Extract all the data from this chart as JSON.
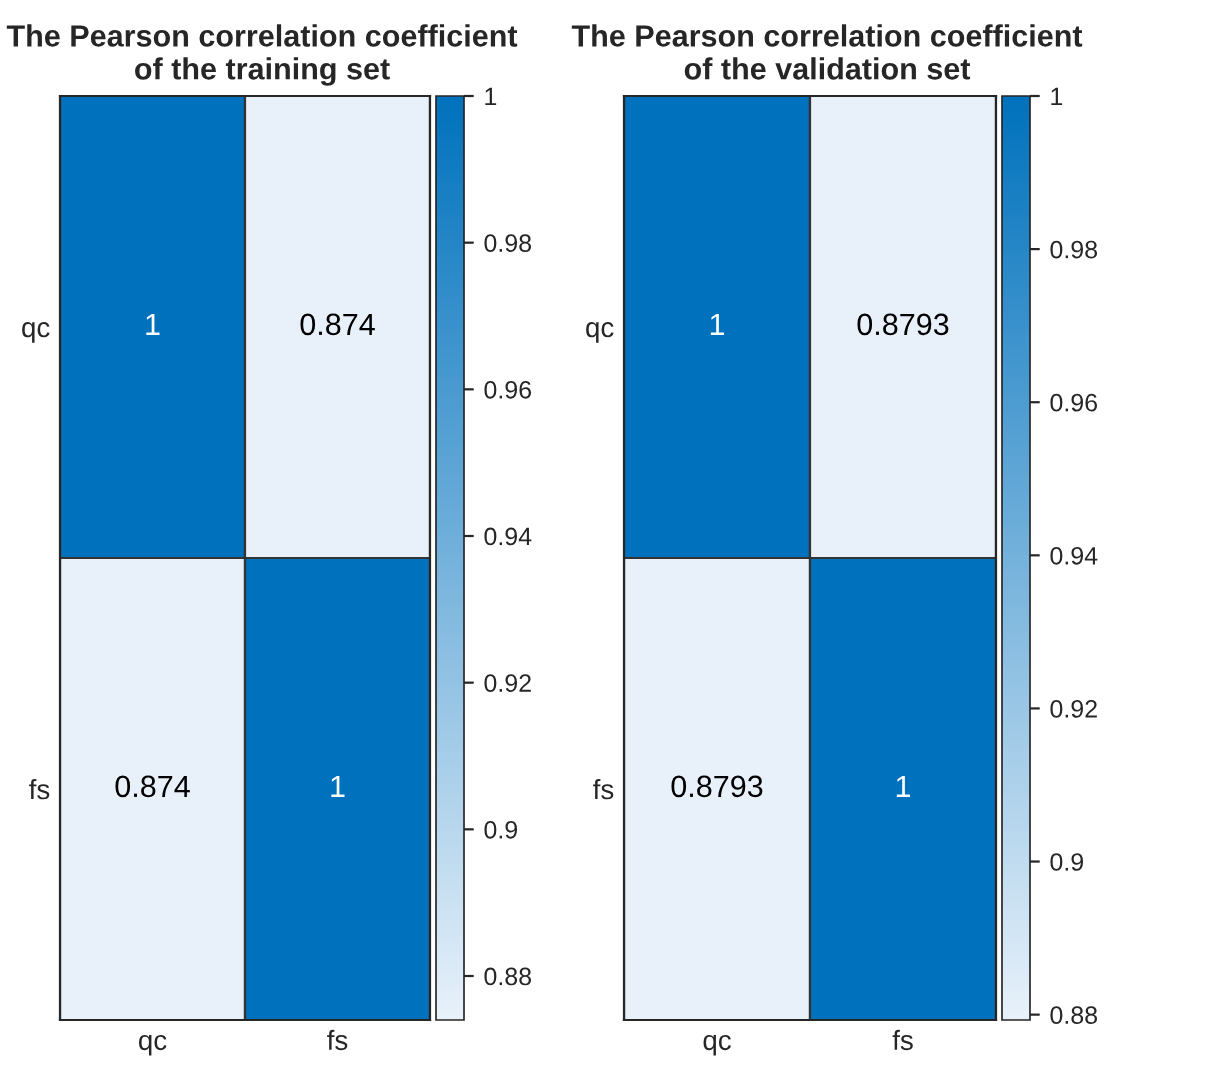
{
  "chart_data": [
    {
      "type": "heatmap",
      "title": "The Pearson correlation coefficient of the training set",
      "categories": [
        "qc",
        "fs"
      ],
      "y_categories": [
        "qc",
        "fs"
      ],
      "cells": [
        [
          1,
          0.874
        ],
        [
          0.874,
          1
        ]
      ],
      "data_labels": true,
      "clim": [
        0.874,
        1
      ],
      "cticks": [
        0.88,
        0.9,
        0.92,
        0.94,
        0.96,
        0.98,
        1
      ],
      "colors": [
        "#e8f1fa",
        "#0072bd"
      ]
    },
    {
      "type": "heatmap",
      "title": "The Pearson correlation coefficient of the validation set",
      "categories": [
        "qc",
        "fs"
      ],
      "y_categories": [
        "qc",
        "fs"
      ],
      "cells": [
        [
          1,
          0.8793
        ],
        [
          0.8793,
          1
        ]
      ],
      "data_labels": true,
      "clim": [
        0.8793,
        1
      ],
      "cticks": [
        0.88,
        0.9,
        0.92,
        0.94,
        0.96,
        0.98,
        1
      ],
      "colors": [
        "#e8f1fa",
        "#0072bd"
      ]
    }
  ]
}
